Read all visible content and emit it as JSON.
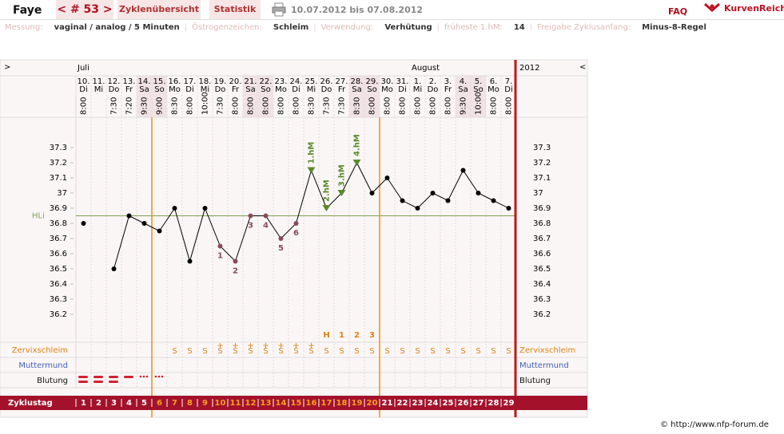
{
  "header": {
    "name": "Faye",
    "cycle_nav": "< # 53 >",
    "tabs": [
      "Zyklenübersicht",
      "Statistik"
    ],
    "date_range": "10.07.2012 bis 07.08.2012",
    "faq": "FAQ",
    "logo": "KurvenReich"
  },
  "separator": "|",
  "settings": [
    {
      "label": "Messung:",
      "value": "vaginal / analog / 5 Minuten"
    },
    {
      "label": "Östrogenzeichen:",
      "value": "Schleim"
    },
    {
      "label": "Verwendung:",
      "value": "Verhütung"
    },
    {
      "label": "früheste 1.hM:",
      "value": "14"
    },
    {
      "label": "Freigabe Zyklusanfang:",
      "value": "Minus-8-Regel"
    }
  ],
  "chart_data": {
    "type": "line",
    "nav_left": ">",
    "nav_right": "<",
    "months": [
      "Juli",
      "August"
    ],
    "year": "2012",
    "dates": [
      "10.",
      "11.",
      "12.",
      "13.",
      "14.",
      "15.",
      "16.",
      "17.",
      "18.",
      "19.",
      "20.",
      "21.",
      "22.",
      "23.",
      "24.",
      "25.",
      "26.",
      "27.",
      "28.",
      "29.",
      "30.",
      "31.",
      "1.",
      "2.",
      "3.",
      "4.",
      "5.",
      "6.",
      "7."
    ],
    "weekdays": [
      "Di",
      "Mi",
      "Do",
      "Fr",
      "Sa",
      "So",
      "Mo",
      "Di",
      "Mi",
      "Do",
      "Fr",
      "Sa",
      "So",
      "Mo",
      "Di",
      "Mi",
      "Do",
      "Fr",
      "Sa",
      "So",
      "Mo",
      "Di",
      "Mi",
      "Do",
      "Fr",
      "Sa",
      "So",
      "Mo",
      "Di"
    ],
    "weekend": [
      false,
      false,
      false,
      false,
      true,
      true,
      false,
      false,
      false,
      false,
      false,
      true,
      true,
      false,
      false,
      false,
      false,
      false,
      true,
      true,
      false,
      false,
      false,
      false,
      false,
      true,
      true,
      false,
      false
    ],
    "times": [
      "8:00",
      null,
      "7:30",
      "7:20",
      "9:30",
      "9:00",
      "8:30",
      "8:00",
      "10:00",
      "7:30",
      "8:00",
      "8:00",
      "8:00",
      "8:00",
      "8:00",
      "8:30",
      "7:30",
      "7:30",
      "8:30",
      "8:00",
      "8:00",
      "8:00",
      "8:00",
      "8:00",
      "8:00",
      "9:30",
      "10:00",
      "8:00",
      "8:00"
    ],
    "cycle_days": [
      1,
      2,
      3,
      4,
      5,
      6,
      7,
      8,
      9,
      10,
      11,
      12,
      13,
      14,
      15,
      16,
      17,
      18,
      19,
      20,
      21,
      22,
      23,
      24,
      25,
      26,
      27,
      28,
      29
    ],
    "series": [
      {
        "name": "Temperatur",
        "color": "#000000",
        "values": [
          36.8,
          null,
          36.5,
          36.85,
          36.8,
          36.75,
          36.9,
          36.55,
          36.9,
          36.65,
          36.55,
          36.85,
          36.85,
          36.7,
          36.8,
          37.15,
          36.9,
          37.0,
          37.2,
          37.0,
          37.1,
          36.95,
          36.9,
          37.0,
          36.95,
          37.15,
          37.0,
          36.95,
          36.9
        ]
      }
    ],
    "low_labels": [
      null,
      null,
      null,
      null,
      null,
      null,
      null,
      null,
      null,
      "1",
      "2",
      "3",
      "4",
      "5",
      "6",
      null,
      null,
      null,
      null,
      null,
      null,
      null,
      null,
      null,
      null,
      null,
      null,
      null,
      null
    ],
    "low_color": "#8a4a5a",
    "high_labels": [
      null,
      null,
      null,
      null,
      null,
      null,
      null,
      null,
      null,
      null,
      null,
      null,
      null,
      null,
      null,
      "1.hM",
      "2.hM",
      "3.hM",
      "4.hM",
      null,
      null,
      null,
      null,
      null,
      null,
      null,
      null,
      null,
      null
    ],
    "high_color": "#5a8a2a",
    "ylim": [
      36.0,
      37.5
    ],
    "yticks": [
      36.2,
      36.3,
      36.4,
      36.5,
      36.6,
      36.7,
      36.8,
      36.9,
      37,
      37.1,
      37.2,
      37.3
    ],
    "hli": 36.85,
    "hli_label": "HLi",
    "hli_color": "#7aa050",
    "vertical_lines_after": [
      5,
      20
    ],
    "vertical_line_color": "#f0900a",
    "row_labels": {
      "mucus": "Zervixschleim",
      "cervix": "Muttermund",
      "bleeding": "Blutung",
      "cycle_day": "Zyklustag"
    },
    "mucus": [
      null,
      null,
      null,
      null,
      null,
      null,
      "S",
      "S",
      "S",
      "S",
      "S",
      "S",
      "S",
      "S",
      "S",
      "S",
      "S",
      "S",
      "S",
      "S",
      "S",
      "S",
      "S",
      "S",
      "S",
      "S",
      "S",
      "S",
      "S"
    ],
    "mucus_plus": [
      null,
      null,
      null,
      null,
      null,
      null,
      null,
      null,
      null,
      "+",
      "+",
      "+",
      "+",
      "+",
      "+",
      "+",
      null,
      null,
      null,
      null,
      null,
      null,
      null,
      null,
      null,
      null,
      null,
      null,
      null
    ],
    "peak": [
      null,
      null,
      null,
      null,
      null,
      null,
      null,
      null,
      null,
      null,
      null,
      null,
      null,
      null,
      null,
      null,
      "H",
      "1",
      "2",
      "3",
      null,
      null,
      null,
      null,
      null,
      null,
      null,
      null,
      null
    ]
  },
  "footer": "© http://www.nfp-forum.de"
}
